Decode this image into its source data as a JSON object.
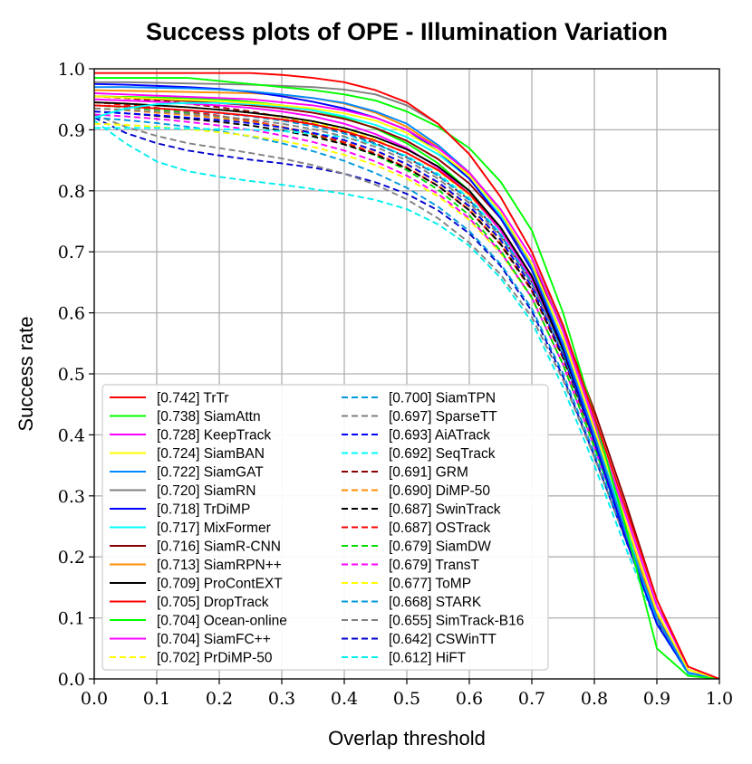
{
  "chart_data": {
    "type": "line",
    "title": "Success plots of OPE - Illumination Variation",
    "xlabel": "Overlap threshold",
    "ylabel": "Success rate",
    "xlim": [
      0,
      1
    ],
    "ylim": [
      0,
      1
    ],
    "xticks": [
      "0.0",
      "0.1",
      "0.2",
      "0.3",
      "0.4",
      "0.5",
      "0.6",
      "0.7",
      "0.8",
      "0.9",
      "1.0"
    ],
    "yticks": [
      "0.0",
      "0.1",
      "0.2",
      "0.3",
      "0.4",
      "0.5",
      "0.6",
      "0.7",
      "0.8",
      "0.9",
      "1.0"
    ],
    "grid": true,
    "legend_position": "lower-left",
    "x": [
      0,
      0.05,
      0.1,
      0.15,
      0.2,
      0.25,
      0.3,
      0.35,
      0.4,
      0.45,
      0.5,
      0.55,
      0.6,
      0.65,
      0.7,
      0.75,
      0.8,
      0.85,
      0.9,
      0.95,
      1.0
    ],
    "series": [
      {
        "name": "[0.742] TrTr",
        "color": "#ff0000",
        "dash": "solid",
        "values": [
          0.993,
          0.993,
          0.993,
          0.993,
          0.993,
          0.993,
          0.99,
          0.985,
          0.978,
          0.965,
          0.945,
          0.91,
          0.86,
          0.79,
          0.7,
          0.58,
          0.43,
          0.28,
          0.13,
          0.02,
          0
        ]
      },
      {
        "name": "[0.738] SiamAttn",
        "color": "#00ff00",
        "dash": "solid",
        "values": [
          0.985,
          0.985,
          0.985,
          0.985,
          0.98,
          0.975,
          0.97,
          0.965,
          0.958,
          0.948,
          0.93,
          0.905,
          0.87,
          0.815,
          0.735,
          0.6,
          0.43,
          0.25,
          0.05,
          0.005,
          0
        ]
      },
      {
        "name": "[0.728] KeepTrack",
        "color": "#ff00ff",
        "dash": "solid",
        "values": [
          0.96,
          0.958,
          0.956,
          0.954,
          0.952,
          0.95,
          0.945,
          0.94,
          0.932,
          0.92,
          0.9,
          0.87,
          0.83,
          0.77,
          0.69,
          0.57,
          0.42,
          0.27,
          0.12,
          0.02,
          0
        ]
      },
      {
        "name": "[0.724] SiamBAN",
        "color": "#ffff00",
        "dash": "solid",
        "values": [
          0.955,
          0.953,
          0.951,
          0.949,
          0.947,
          0.944,
          0.94,
          0.935,
          0.927,
          0.915,
          0.895,
          0.865,
          0.825,
          0.765,
          0.68,
          0.56,
          0.41,
          0.26,
          0.11,
          0.015,
          0
        ]
      },
      {
        "name": "[0.722] SiamGAT",
        "color": "#0088ff",
        "dash": "solid",
        "values": [
          0.97,
          0.97,
          0.969,
          0.968,
          0.966,
          0.963,
          0.958,
          0.952,
          0.944,
          0.93,
          0.91,
          0.875,
          0.83,
          0.765,
          0.675,
          0.55,
          0.4,
          0.24,
          0.1,
          0.01,
          0
        ]
      },
      {
        "name": "[0.720] SiamRN",
        "color": "#808080",
        "dash": "solid",
        "values": [
          0.978,
          0.978,
          0.977,
          0.976,
          0.975,
          0.974,
          0.972,
          0.97,
          0.966,
          0.958,
          0.94,
          0.91,
          0.86,
          0.79,
          0.7,
          0.575,
          0.42,
          0.26,
          0.11,
          0.01,
          0
        ]
      },
      {
        "name": "[0.718] TrDiMP",
        "color": "#0000ff",
        "dash": "solid",
        "values": [
          0.975,
          0.974,
          0.972,
          0.97,
          0.967,
          0.962,
          0.955,
          0.946,
          0.935,
          0.92,
          0.9,
          0.865,
          0.82,
          0.755,
          0.67,
          0.545,
          0.39,
          0.23,
          0.09,
          0.01,
          0
        ]
      },
      {
        "name": "[0.717] MixFormer",
        "color": "#00ffff",
        "dash": "solid",
        "values": [
          0.92,
          0.935,
          0.942,
          0.944,
          0.944,
          0.942,
          0.938,
          0.932,
          0.922,
          0.908,
          0.888,
          0.86,
          0.82,
          0.76,
          0.68,
          0.56,
          0.41,
          0.25,
          0.09,
          0.01,
          0
        ]
      },
      {
        "name": "[0.716] SiamR-CNN",
        "color": "#8b0000",
        "dash": "solid",
        "values": [
          0.955,
          0.953,
          0.95,
          0.947,
          0.944,
          0.94,
          0.935,
          0.928,
          0.918,
          0.903,
          0.882,
          0.852,
          0.812,
          0.755,
          0.68,
          0.575,
          0.44,
          0.29,
          0.13,
          0.015,
          0
        ]
      },
      {
        "name": "[0.713] SiamRPN++",
        "color": "#ff8c00",
        "dash": "solid",
        "values": [
          0.965,
          0.964,
          0.963,
          0.962,
          0.961,
          0.96,
          0.957,
          0.952,
          0.943,
          0.928,
          0.905,
          0.872,
          0.828,
          0.765,
          0.68,
          0.56,
          0.41,
          0.25,
          0.1,
          0.01,
          0
        ]
      },
      {
        "name": "[0.709] ProContEXT",
        "color": "#000000",
        "dash": "solid",
        "values": [
          0.945,
          0.943,
          0.94,
          0.937,
          0.933,
          0.928,
          0.922,
          0.914,
          0.903,
          0.888,
          0.868,
          0.84,
          0.8,
          0.74,
          0.66,
          0.54,
          0.39,
          0.24,
          0.1,
          0.01,
          0
        ]
      },
      {
        "name": "[0.705] DropTrack",
        "color": "#ff0000",
        "dash": "solid",
        "values": [
          0.94,
          0.938,
          0.935,
          0.932,
          0.928,
          0.923,
          0.917,
          0.909,
          0.898,
          0.882,
          0.862,
          0.834,
          0.795,
          0.74,
          0.66,
          0.55,
          0.4,
          0.25,
          0.1,
          0.01,
          0
        ]
      },
      {
        "name": "[0.704] Ocean-online",
        "color": "#00ff00",
        "dash": "solid",
        "values": [
          0.955,
          0.954,
          0.953,
          0.952,
          0.95,
          0.946,
          0.94,
          0.932,
          0.92,
          0.902,
          0.878,
          0.845,
          0.8,
          0.74,
          0.66,
          0.54,
          0.39,
          0.24,
          0.1,
          0.01,
          0
        ]
      },
      {
        "name": "[0.704] SiamFC++",
        "color": "#ff00ff",
        "dash": "solid",
        "values": [
          0.95,
          0.948,
          0.946,
          0.943,
          0.94,
          0.936,
          0.93,
          0.922,
          0.91,
          0.893,
          0.87,
          0.838,
          0.795,
          0.735,
          0.655,
          0.54,
          0.395,
          0.245,
          0.1,
          0.01,
          0
        ]
      },
      {
        "name": "[0.702] PrDiMP-50",
        "color": "#ffff00",
        "dash": "dashed",
        "values": [
          0.945,
          0.943,
          0.94,
          0.937,
          0.933,
          0.928,
          0.921,
          0.912,
          0.9,
          0.884,
          0.862,
          0.833,
          0.793,
          0.735,
          0.655,
          0.54,
          0.4,
          0.25,
          0.1,
          0.01,
          0
        ]
      },
      {
        "name": "[0.700] SiamTPN",
        "color": "#0099dd",
        "dash": "dashed",
        "values": [
          0.94,
          0.938,
          0.935,
          0.931,
          0.927,
          0.922,
          0.915,
          0.906,
          0.894,
          0.877,
          0.855,
          0.825,
          0.785,
          0.728,
          0.65,
          0.535,
          0.39,
          0.24,
          0.1,
          0.01,
          0
        ]
      },
      {
        "name": "[0.697] SparseTT",
        "color": "#808080",
        "dash": "dashed",
        "values": [
          0.935,
          0.933,
          0.93,
          0.926,
          0.922,
          0.917,
          0.91,
          0.901,
          0.889,
          0.872,
          0.85,
          0.82,
          0.78,
          0.725,
          0.648,
          0.535,
          0.395,
          0.245,
          0.105,
          0.01,
          0
        ]
      },
      {
        "name": "[0.693] AiATrack",
        "color": "#0000ff",
        "dash": "dashed",
        "values": [
          0.93,
          0.927,
          0.924,
          0.92,
          0.916,
          0.911,
          0.904,
          0.895,
          0.883,
          0.866,
          0.844,
          0.814,
          0.775,
          0.72,
          0.643,
          0.53,
          0.39,
          0.24,
          0.1,
          0.01,
          0
        ]
      },
      {
        "name": "[0.692] SeqTrack",
        "color": "#00ffff",
        "dash": "dashed",
        "values": [
          0.903,
          0.903,
          0.903,
          0.902,
          0.901,
          0.9,
          0.898,
          0.894,
          0.888,
          0.876,
          0.857,
          0.828,
          0.788,
          0.73,
          0.65,
          0.535,
          0.39,
          0.24,
          0.1,
          0.01,
          0
        ]
      },
      {
        "name": "[0.691] GRM",
        "color": "#8b0000",
        "dash": "dashed",
        "values": [
          0.955,
          0.952,
          0.948,
          0.943,
          0.937,
          0.93,
          0.921,
          0.91,
          0.896,
          0.878,
          0.855,
          0.825,
          0.785,
          0.728,
          0.65,
          0.54,
          0.4,
          0.255,
          0.11,
          0.01,
          0
        ]
      },
      {
        "name": "[0.690] DiMP-50",
        "color": "#ff8c00",
        "dash": "dashed",
        "values": [
          0.935,
          0.932,
          0.928,
          0.924,
          0.919,
          0.913,
          0.905,
          0.895,
          0.882,
          0.865,
          0.843,
          0.813,
          0.773,
          0.718,
          0.642,
          0.53,
          0.39,
          0.245,
          0.105,
          0.01,
          0
        ]
      },
      {
        "name": "[0.687] SwinTrack",
        "color": "#000000",
        "dash": "dashed",
        "values": [
          0.93,
          0.927,
          0.923,
          0.918,
          0.913,
          0.907,
          0.899,
          0.889,
          0.876,
          0.859,
          0.837,
          0.808,
          0.768,
          0.713,
          0.638,
          0.527,
          0.39,
          0.245,
          0.105,
          0.01,
          0
        ]
      },
      {
        "name": "[0.687] OSTrack",
        "color": "#ff0000",
        "dash": "dashed",
        "values": [
          0.945,
          0.941,
          0.936,
          0.93,
          0.923,
          0.915,
          0.905,
          0.893,
          0.879,
          0.861,
          0.838,
          0.808,
          0.768,
          0.712,
          0.636,
          0.525,
          0.388,
          0.243,
          0.103,
          0.01,
          0
        ]
      },
      {
        "name": "[0.679] SiamDW",
        "color": "#00dd00",
        "dash": "dashed",
        "values": [
          0.94,
          0.937,
          0.933,
          0.928,
          0.922,
          0.914,
          0.904,
          0.892,
          0.877,
          0.858,
          0.834,
          0.802,
          0.76,
          0.702,
          0.625,
          0.515,
          0.38,
          0.237,
          0.1,
          0.01,
          0
        ]
      },
      {
        "name": "[0.679] TransT",
        "color": "#ff00ff",
        "dash": "dashed",
        "values": [
          0.925,
          0.922,
          0.918,
          0.913,
          0.907,
          0.9,
          0.891,
          0.88,
          0.866,
          0.848,
          0.825,
          0.795,
          0.755,
          0.7,
          0.625,
          0.515,
          0.38,
          0.238,
          0.1,
          0.01,
          0
        ]
      },
      {
        "name": "[0.677] ToMP",
        "color": "#ffff00",
        "dash": "dashed",
        "values": [
          0.91,
          0.908,
          0.905,
          0.901,
          0.896,
          0.89,
          0.882,
          0.872,
          0.859,
          0.842,
          0.82,
          0.791,
          0.752,
          0.698,
          0.624,
          0.515,
          0.382,
          0.24,
          0.102,
          0.01,
          0
        ]
      },
      {
        "name": "[0.668] STARK",
        "color": "#0099dd",
        "dash": "dashed",
        "values": [
          0.92,
          0.916,
          0.911,
          0.905,
          0.898,
          0.889,
          0.878,
          0.865,
          0.849,
          0.829,
          0.805,
          0.774,
          0.734,
          0.68,
          0.607,
          0.5,
          0.37,
          0.232,
          0.098,
          0.01,
          0
        ]
      },
      {
        "name": "[0.655] SimTrack-B16",
        "color": "#808080",
        "dash": "dashed",
        "values": [
          0.925,
          0.905,
          0.89,
          0.878,
          0.87,
          0.862,
          0.853,
          0.842,
          0.828,
          0.81,
          0.786,
          0.755,
          0.715,
          0.663,
          0.593,
          0.49,
          0.363,
          0.228,
          0.096,
          0.01,
          0
        ]
      },
      {
        "name": "[0.642] CSWinTT",
        "color": "#0000cc",
        "dash": "dashed",
        "values": [
          0.92,
          0.895,
          0.878,
          0.866,
          0.858,
          0.851,
          0.845,
          0.838,
          0.828,
          0.814,
          0.795,
          0.768,
          0.73,
          0.677,
          0.603,
          0.495,
          0.365,
          0.228,
          0.095,
          0.01,
          0
        ]
      },
      {
        "name": "[0.612] HiFT",
        "color": "#00eeee",
        "dash": "dashed",
        "values": [
          0.915,
          0.878,
          0.848,
          0.832,
          0.823,
          0.816,
          0.81,
          0.803,
          0.795,
          0.785,
          0.77,
          0.745,
          0.71,
          0.657,
          0.585,
          0.478,
          0.35,
          0.215,
          0.09,
          0.008,
          0
        ]
      }
    ]
  }
}
